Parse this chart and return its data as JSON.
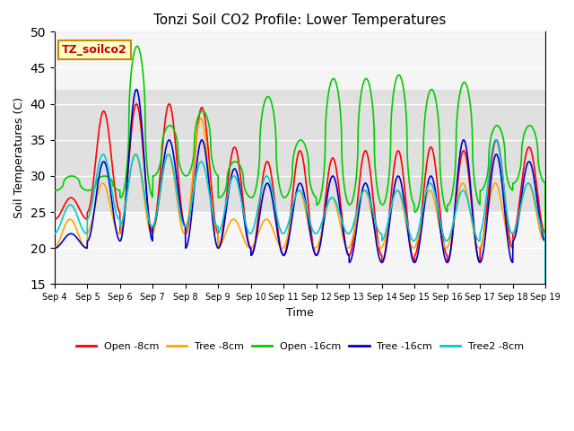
{
  "title": "Tonzi Soil CO2 Profile: Lower Temperatures",
  "xlabel": "Time",
  "ylabel": "Soil Temperatures (C)",
  "ylim": [
    15,
    50
  ],
  "yticks": [
    15,
    20,
    25,
    30,
    35,
    40,
    45,
    50
  ],
  "annotation_text": "TZ_soilco2",
  "annotation_bg": "#ffffcc",
  "annotation_edge": "#cc8800",
  "annotation_text_color": "#cc0000",
  "series_names": [
    "Open -8cm",
    "Tree -8cm",
    "Open -16cm",
    "Tree -16cm",
    "Tree2 -8cm"
  ],
  "series_colors": [
    "#ff0000",
    "#ffa500",
    "#00cc00",
    "#0000cc",
    "#00cccc"
  ],
  "lw": 1.2,
  "bg_band_low": 25,
  "bg_band_high": 42,
  "bg_band_color": "#e0e0e0",
  "axes_bg": "#f5f5f5",
  "n_days": 15,
  "start_day": 4,
  "pts_per_day": 144,
  "open8_peaks": [
    27,
    39,
    40,
    40,
    39.5,
    34,
    32,
    33.5,
    32.5,
    33.5,
    33.5,
    34,
    33.5,
    35,
    34
  ],
  "open8_mins": [
    24,
    25,
    22,
    23,
    22,
    20,
    19,
    19,
    19,
    19,
    18,
    19,
    18,
    20,
    22
  ],
  "tree8_peaks": [
    24,
    29,
    33,
    33,
    38,
    24,
    24,
    28,
    27,
    28,
    28,
    28,
    29,
    29,
    29
  ],
  "tree8_mins": [
    20,
    22,
    22,
    22,
    22,
    20,
    20,
    20,
    20,
    20,
    20,
    20,
    20,
    20,
    21
  ],
  "open16_peaks": [
    30,
    30,
    48,
    37,
    39,
    32,
    41,
    35,
    43.5,
    43.5,
    44,
    42,
    43,
    37,
    37
  ],
  "open16_mins": [
    28,
    28,
    27,
    30,
    30,
    27,
    27,
    27,
    26,
    26,
    26,
    25,
    26,
    28,
    29
  ],
  "tree16_peaks": [
    22,
    32,
    42,
    35,
    35,
    31,
    29,
    29,
    30,
    29,
    30,
    30,
    35,
    33,
    32
  ],
  "tree16_mins": [
    20,
    21,
    21,
    23,
    20,
    20,
    19,
    19,
    19,
    18,
    18,
    18,
    18,
    18,
    21
  ],
  "tree28_peaks": [
    26,
    33,
    33,
    33,
    32,
    30,
    30,
    28,
    27,
    28,
    28,
    29,
    28,
    35,
    29
  ],
  "tree28_mins": [
    22,
    24,
    23,
    23,
    23,
    22,
    22,
    22,
    22,
    22,
    21,
    21,
    21,
    22,
    22
  ]
}
